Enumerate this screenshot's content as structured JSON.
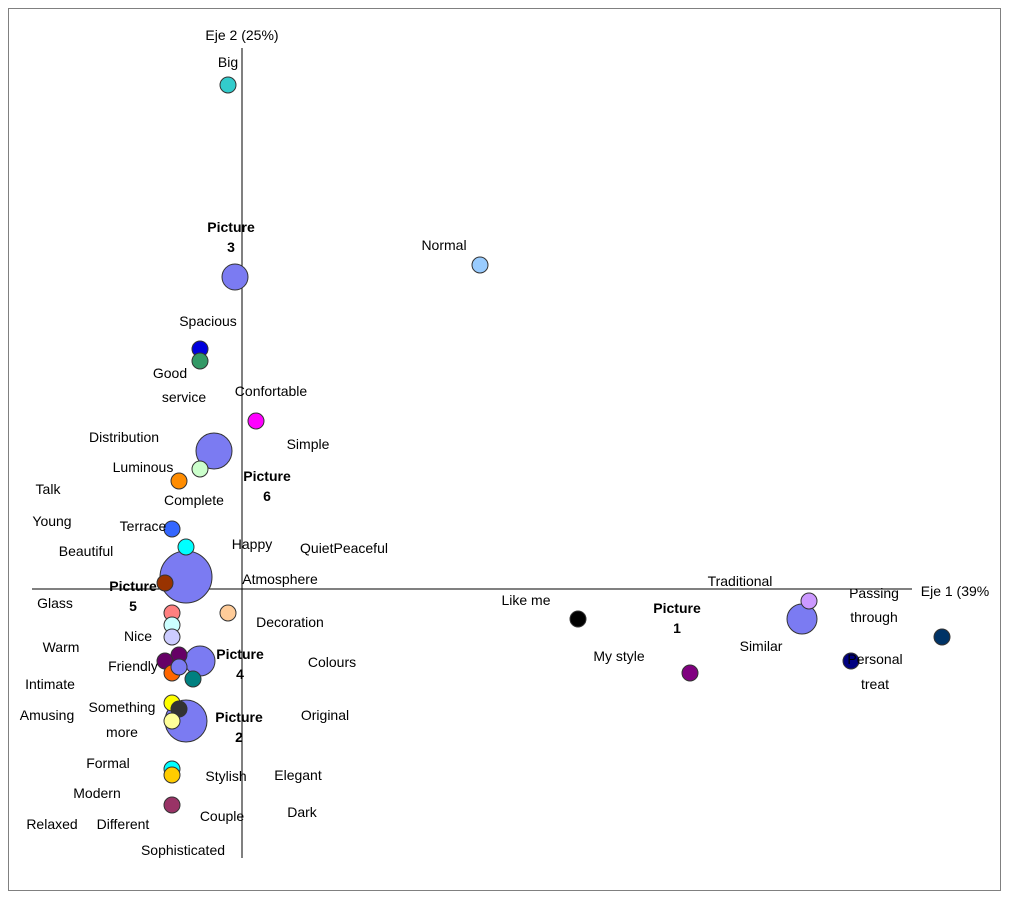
{
  "chart_data": {
    "type": "scatter",
    "title": "",
    "xlabel": "Eje 1 (39%",
    "ylabel": "Eje 2 (25%)",
    "grid": false,
    "legend": "none",
    "picture_points": [
      {
        "label": [
          "Picture",
          "1"
        ],
        "x": 0.8,
        "y": -0.05,
        "size": 4,
        "color": "#7b7bf2"
      },
      {
        "label": [
          "Picture",
          "2"
        ],
        "x": -0.08,
        "y": -0.22,
        "size": 6,
        "color": "#7b7bf2"
      },
      {
        "label": [
          "Picture",
          "3"
        ],
        "x": -0.01,
        "y": 0.52,
        "size": 3,
        "color": "#7b7bf2"
      },
      {
        "label": [
          "Picture",
          "4"
        ],
        "x": -0.06,
        "y": -0.12,
        "size": 4,
        "color": "#7b7bf2"
      },
      {
        "label": [
          "Picture",
          "5"
        ],
        "x": -0.08,
        "y": 0.02,
        "size": 7,
        "color": "#7b7bf2"
      },
      {
        "label": [
          "Picture",
          "6"
        ],
        "x": -0.04,
        "y": 0.23,
        "size": 5,
        "color": "#7b7bf2"
      }
    ],
    "attribute_points": [
      {
        "label": "Big",
        "x": -0.02,
        "y": 0.84,
        "color": "#33cccc"
      },
      {
        "label": "Normal",
        "x": 0.34,
        "y": 0.54,
        "color": "#99ccff"
      },
      {
        "label": "Spacious",
        "x": -0.06,
        "y": 0.4,
        "color": "#0000dd"
      },
      {
        "label": "Good service",
        "x": -0.06,
        "y": 0.38,
        "color": "#339966"
      },
      {
        "label": "Confortable",
        "x": 0.02,
        "y": 0.28,
        "color": "#ff00ff"
      },
      {
        "label": "Luminous",
        "x": -0.06,
        "y": 0.2,
        "color": "#ccffcc"
      },
      {
        "label": "Complete",
        "x": -0.09,
        "y": 0.18,
        "color": "#ff8c00"
      },
      {
        "label": "Terrace",
        "x": -0.1,
        "y": 0.1,
        "color": "#3366ff"
      },
      {
        "label": "Happy",
        "x": -0.08,
        "y": 0.07,
        "color": "#00ffff"
      },
      {
        "label": "Atmosphere",
        "x": -0.11,
        "y": 0.01,
        "color": "#993300"
      },
      {
        "label": "Decoration",
        "x": -0.02,
        "y": -0.04,
        "color": "#ffcc99"
      },
      {
        "label": "Nice",
        "x": -0.1,
        "y": -0.04,
        "color": "#ff8080"
      },
      {
        "label": "Warm",
        "x": -0.1,
        "y": -0.06,
        "color": "#ccffff"
      },
      {
        "label": "Friendly",
        "x": -0.1,
        "y": -0.08,
        "color": "#ccccff"
      },
      {
        "label": "Colours",
        "x": -0.09,
        "y": -0.11,
        "color": "#660066"
      },
      {
        "label": "Intimate",
        "x": -0.11,
        "y": -0.12,
        "color": "#660066"
      },
      {
        "label": "Quiet",
        "x": -0.1,
        "y": -0.14,
        "color": "#ff6600"
      },
      {
        "label": "Peaceful",
        "x": -0.09,
        "y": -0.13,
        "color": "#7b7bf2"
      },
      {
        "label": "Original",
        "x": -0.07,
        "y": -0.15,
        "color": "#008080"
      },
      {
        "label": "Amusing",
        "x": -0.1,
        "y": -0.19,
        "color": "#ffff00"
      },
      {
        "label": "Something more",
        "x": -0.09,
        "y": -0.2,
        "color": "#333333"
      },
      {
        "label": "Elegant",
        "x": -0.1,
        "y": -0.22,
        "color": "#ffff99"
      },
      {
        "label": "Stylish",
        "x": -0.1,
        "y": -0.3,
        "color": "#00ffff"
      },
      {
        "label": "Modern",
        "x": -0.1,
        "y": -0.31,
        "color": "#ffcc00"
      },
      {
        "label": "Couple",
        "x": -0.1,
        "y": -0.36,
        "color": "#993366"
      },
      {
        "label": "Like me",
        "x": 0.48,
        "y": -0.05,
        "color": "#000000"
      },
      {
        "label": "My style",
        "x": 0.64,
        "y": -0.14,
        "color": "#800080"
      },
      {
        "label": "Traditional",
        "x": 0.81,
        "y": -0.02,
        "color": "#cc99ff"
      },
      {
        "label": "Similar",
        "x": 0.87,
        "y": -0.12,
        "color": "#000080"
      },
      {
        "label": "Personal treat",
        "x": 1.0,
        "y": -0.08,
        "color": "#003366"
      }
    ],
    "text_labels": [
      "Eje 2 (25%)",
      "Big",
      "Normal",
      "Spacious",
      "Good",
      "service",
      "Confortable",
      "Distribution",
      "Simple",
      "Luminous",
      "Talk",
      "Complete",
      "Young",
      "Terrace",
      "Beautiful",
      "Happy",
      "QuietPeaceful",
      "Atmosphere",
      "Glass",
      "Decoration",
      "Nice",
      "Warm",
      "Friendly",
      "Colours",
      "Intimate",
      "Amusing",
      "Something",
      "more",
      "Original",
      "Formal",
      "Stylish",
      "Elegant",
      "Modern",
      "Dark",
      "Relaxed",
      "Different",
      "Couple",
      "Sophisticated",
      "Like me",
      "My style",
      "Traditional",
      "Similar",
      "Passing",
      "through",
      "Personal",
      "treat",
      "Eje 1 (39%"
    ]
  }
}
